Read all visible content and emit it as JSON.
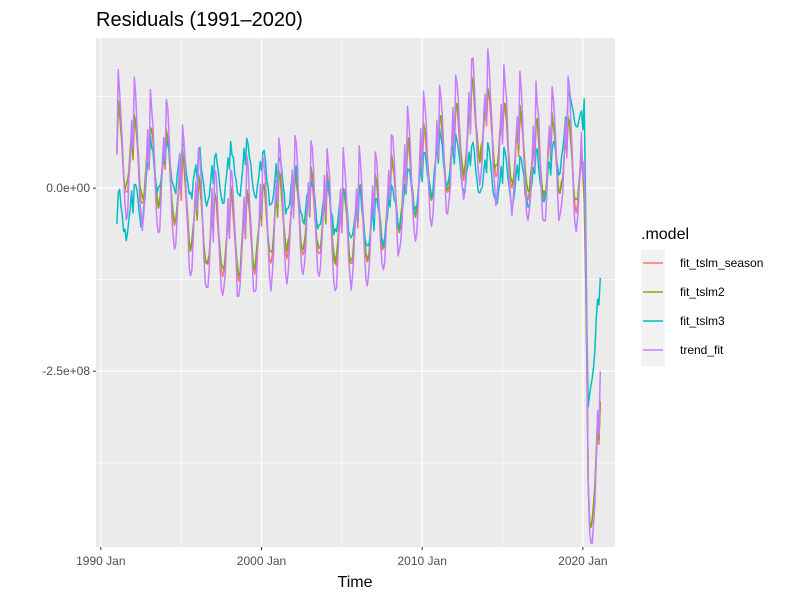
{
  "chart_data": {
    "type": "line",
    "title": "Residuals (1991–2020)",
    "xlabel": "Time",
    "ylabel": "",
    "xlim": [
      1989.7,
      2022.0
    ],
    "ylim": [
      -490000000,
      205000000
    ],
    "x_ticks": [
      {
        "value": 1990.0,
        "label": "1990 Jan"
      },
      {
        "value": 2000.0,
        "label": "2000 Jan"
      },
      {
        "value": 2010.0,
        "label": "2010 Jan"
      },
      {
        "value": 2020.0,
        "label": "2020 Jan"
      }
    ],
    "x_minor_ticks": [
      1995.0,
      2005.0,
      2015.0
    ],
    "y_ticks": [
      {
        "value": 0,
        "label": "0.0e+00"
      },
      {
        "value": -250000000,
        "label": "-2.5e+08"
      }
    ],
    "y_minor_ticks": [
      125000000,
      -125000000,
      -375000000
    ],
    "grid": true,
    "legend": {
      "title": ".model",
      "position": "right"
    },
    "series": [
      {
        "name": "fit_tslm_season",
        "color": "#F8766D",
        "kind": "a",
        "amp": 55000000,
        "shift": -5000000
      },
      {
        "name": "fit_tslm2",
        "color": "#7CAE00",
        "kind": "b",
        "amp": 55000000,
        "shift": 0
      },
      {
        "name": "fit_tslm3",
        "color": "#00BFC4",
        "kind": "c",
        "amp": 35000000,
        "shift": 0
      },
      {
        "name": "trend_fit",
        "color": "#C77CFF",
        "kind": "d",
        "amp": 95000000,
        "shift": 0
      }
    ],
    "x_start": 1991.0,
    "x_step": 0.0833333
  }
}
